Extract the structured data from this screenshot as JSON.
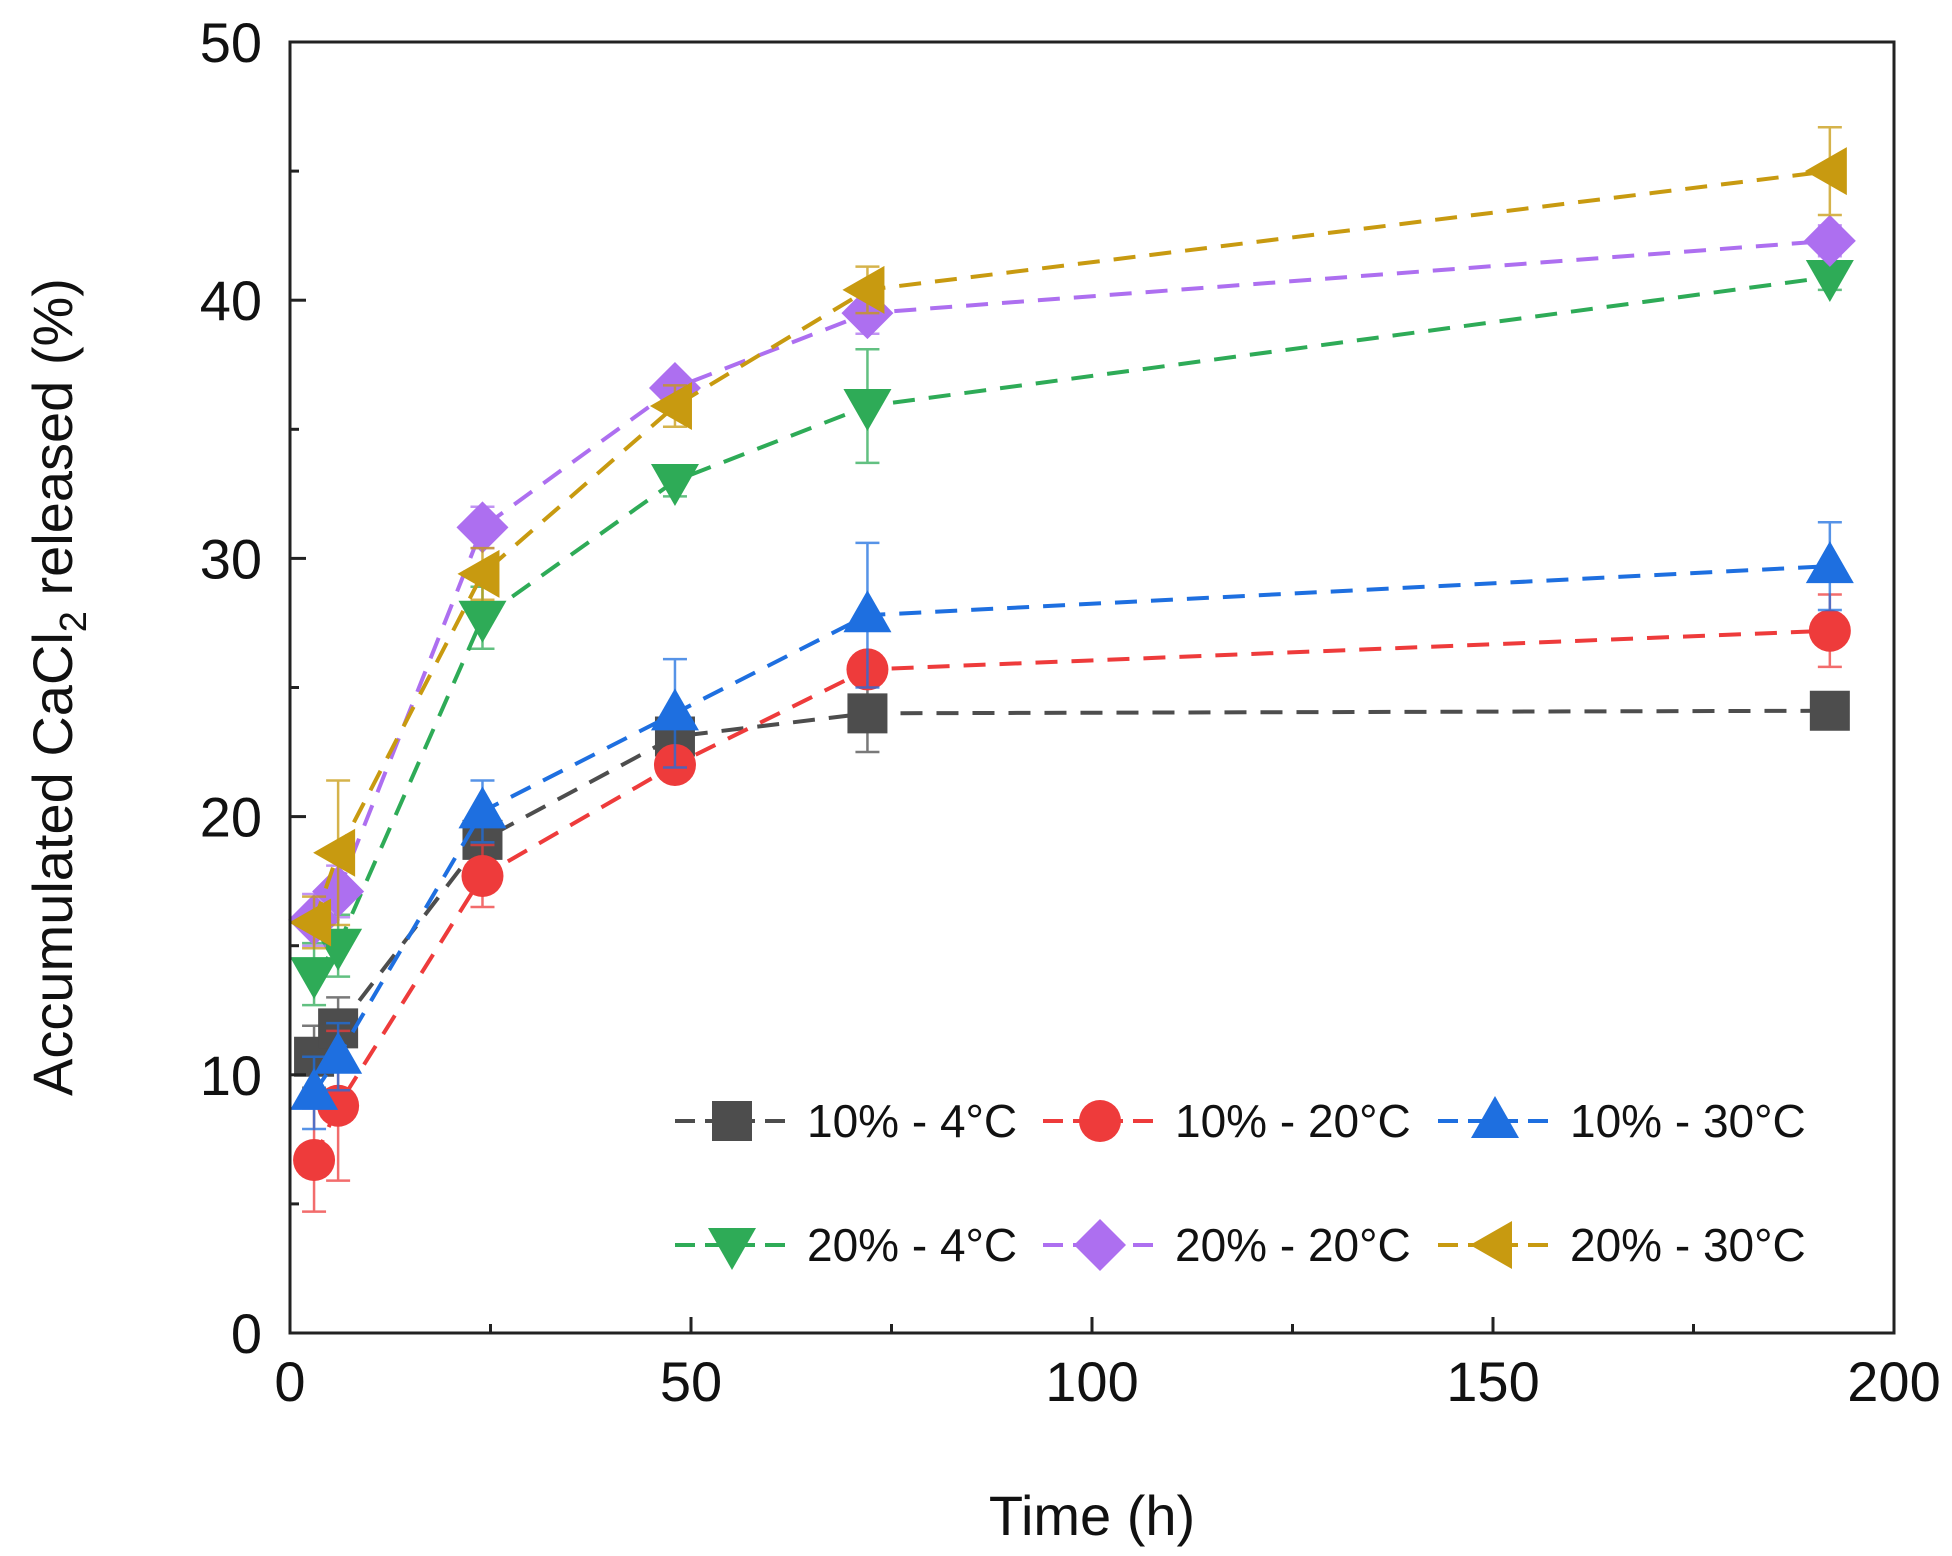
{
  "chart_data": {
    "type": "line",
    "title": "",
    "xlabel": "Time (h)",
    "ylabel_parts": {
      "prefix": "Accumulated CaCl",
      "sub": "2",
      "suffix": " released (%)"
    },
    "xlim": [
      0,
      200
    ],
    "ylim": [
      0,
      50
    ],
    "xticks": [
      0,
      50,
      100,
      150,
      200
    ],
    "yticks": [
      0,
      10,
      20,
      30,
      40,
      50
    ],
    "grid": false,
    "legend_position": "bottom-right",
    "x": [
      3,
      6,
      24,
      48,
      72,
      192
    ],
    "series": [
      {
        "name": "10% - 4°C",
        "color": "#4d4d4d",
        "marker": "square",
        "values": [
          10.7,
          11.8,
          19.1,
          23.1,
          24.0,
          24.1
        ],
        "errors": [
          1.2,
          1.2,
          1.2,
          1.0,
          1.5,
          0.5
        ]
      },
      {
        "name": "10% - 20°C",
        "color": "#ee3b3b",
        "marker": "circle",
        "values": [
          6.7,
          8.8,
          17.7,
          22.0,
          25.7,
          27.2
        ],
        "errors": [
          2.0,
          2.9,
          1.2,
          0.6,
          0.6,
          1.4
        ]
      },
      {
        "name": "10% - 30°C",
        "color": "#1e6fe0",
        "marker": "triangle-up",
        "values": [
          9.3,
          10.7,
          20.2,
          24.0,
          27.8,
          29.7
        ],
        "errors": [
          1.4,
          1.3,
          1.2,
          2.1,
          2.8,
          1.7
        ]
      },
      {
        "name": "20% - 4°C",
        "color": "#2eab57",
        "marker": "triangle-down",
        "values": [
          13.9,
          15.0,
          27.7,
          33.0,
          35.9,
          40.9
        ],
        "errors": [
          1.2,
          1.2,
          1.2,
          0.6,
          2.2,
          0.5
        ]
      },
      {
        "name": "20% - 20°C",
        "color": "#ad6ff0",
        "marker": "diamond",
        "values": [
          16.0,
          17.1,
          31.2,
          36.6,
          39.5,
          42.3
        ],
        "errors": [
          1.0,
          1.0,
          0.8,
          0.5,
          0.8,
          0.6
        ]
      },
      {
        "name": "20% - 30°C",
        "color": "#c89a10",
        "marker": "triangle-left",
        "values": [
          15.9,
          18.6,
          29.4,
          35.9,
          40.4,
          45.0
        ],
        "errors": [
          1.0,
          2.8,
          1.0,
          0.8,
          0.9,
          1.7
        ]
      }
    ]
  }
}
